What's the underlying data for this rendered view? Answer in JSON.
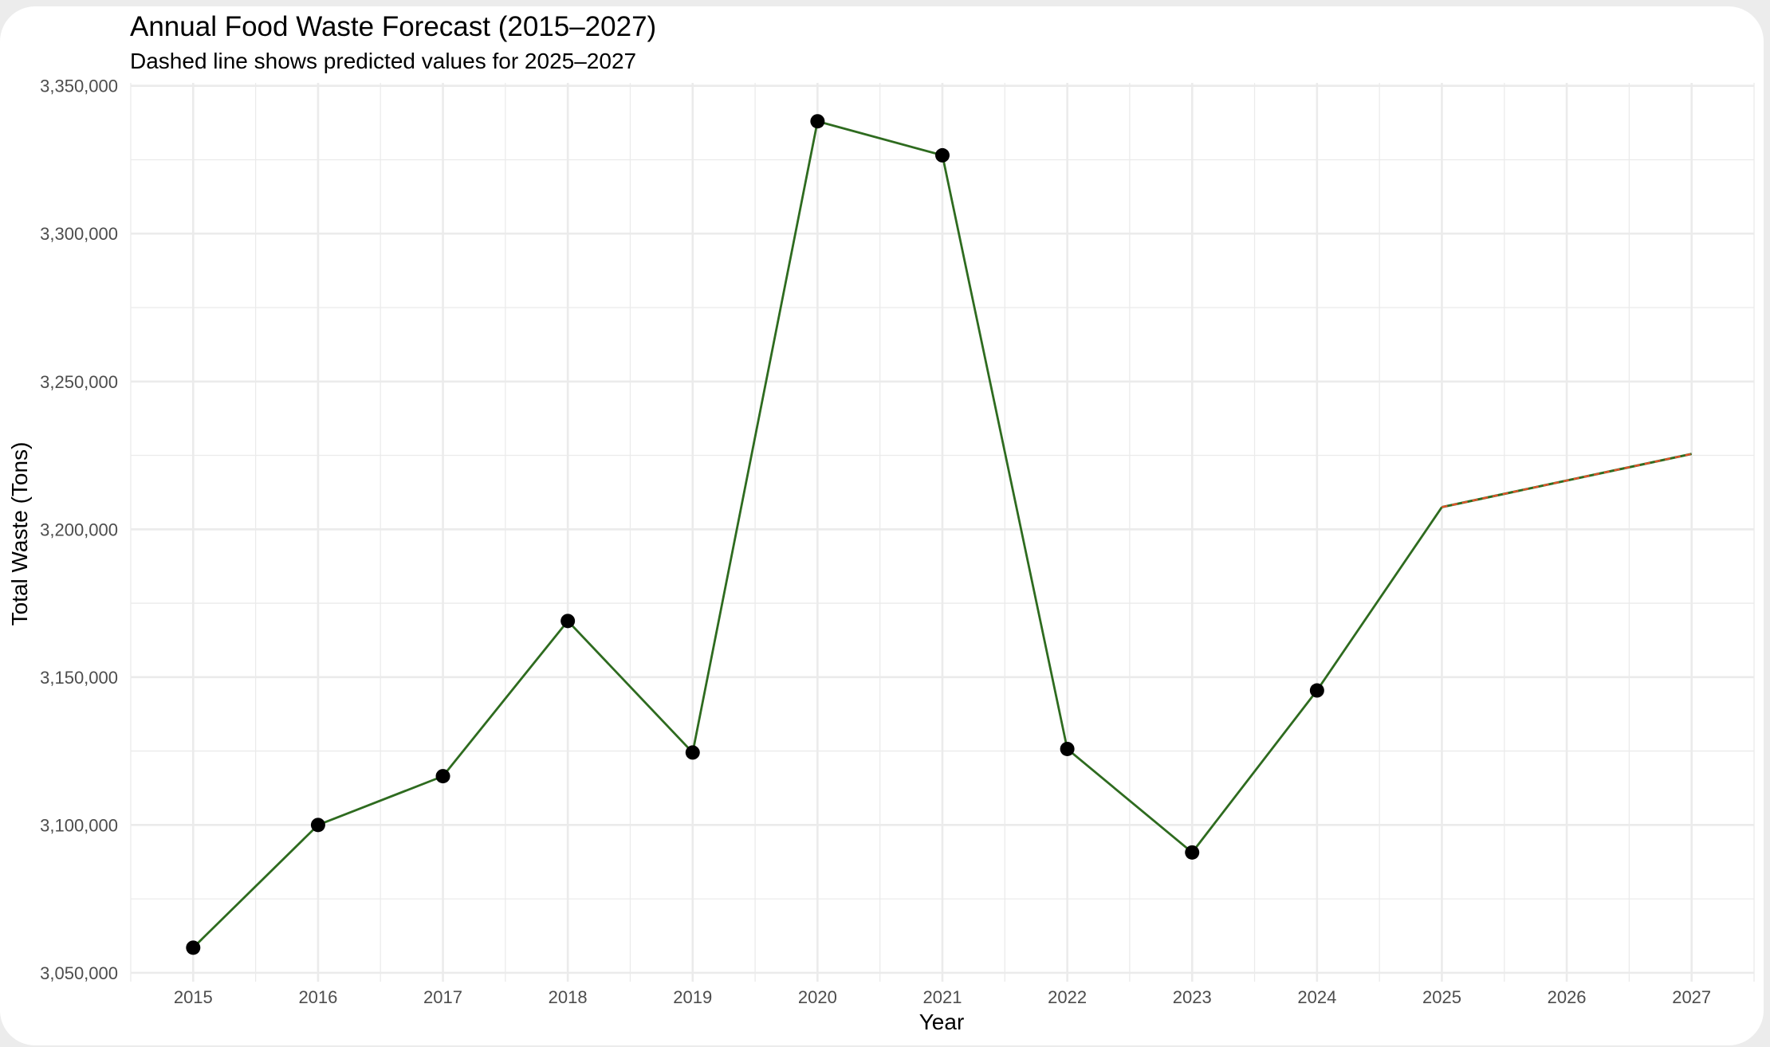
{
  "chart_data": {
    "type": "line",
    "title": "Annual Food Waste Forecast (2015–2027)",
    "subtitle": "Dashed line shows predicted values for 2025–2027",
    "xlabel": "Year",
    "ylabel": "Total Waste (Tons)",
    "x": [
      2015,
      2016,
      2017,
      2018,
      2019,
      2020,
      2021,
      2022,
      2023,
      2024,
      2025,
      2026,
      2027
    ],
    "values": [
      3058500,
      3100000,
      3116500,
      3169000,
      3124500,
      3338000,
      3326500,
      3125700,
      3090700,
      3145500,
      3207500,
      3216500,
      3225500
    ],
    "observed_years": [
      2015,
      2016,
      2017,
      2018,
      2019,
      2020,
      2021,
      2022,
      2023,
      2024
    ],
    "predicted_years": [
      2025,
      2026,
      2027
    ],
    "xlim": [
      2014.5,
      2027.5
    ],
    "ylim": [
      3047000,
      3351000
    ],
    "x_ticks": [
      "2015",
      "2016",
      "2017",
      "2018",
      "2019",
      "2020",
      "2021",
      "2022",
      "2023",
      "2024",
      "2025",
      "2026",
      "2027"
    ],
    "y_ticks": [
      {
        "value": 3050000,
        "label": "3,050,000"
      },
      {
        "value": 3100000,
        "label": "3,100,000"
      },
      {
        "value": 3150000,
        "label": "3,150,000"
      },
      {
        "value": 3200000,
        "label": "3,200,000"
      },
      {
        "value": 3250000,
        "label": "3,250,000"
      },
      {
        "value": 3300000,
        "label": "3,300,000"
      },
      {
        "value": 3350000,
        "label": "3,350,000"
      }
    ],
    "grid": true,
    "legend": "none",
    "colors": {
      "line": "#2e6b1f",
      "forecast_dash": "#e8502a",
      "points": "#000000",
      "grid": "#ebebeb"
    }
  }
}
